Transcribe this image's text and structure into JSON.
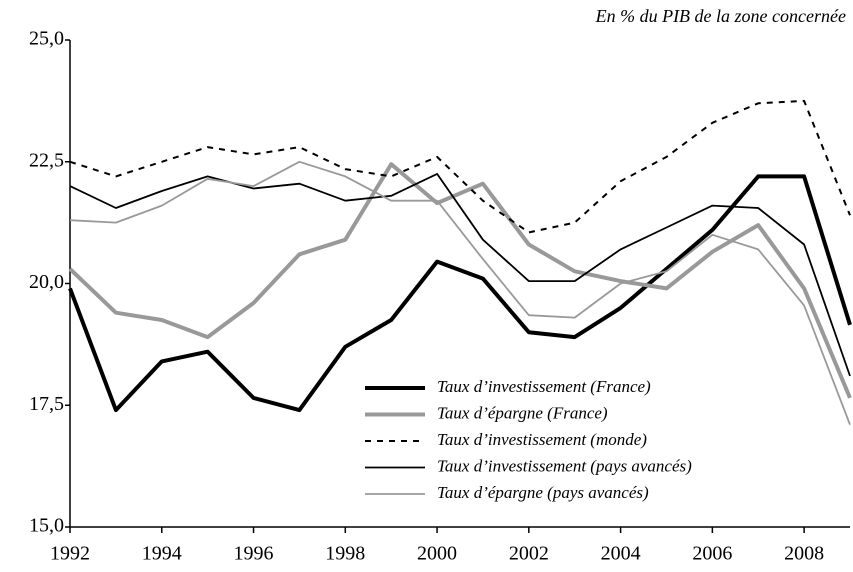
{
  "chart_data": {
    "type": "line",
    "annotation": "En % du PIB de la zone concernée",
    "x": [
      1992,
      1993,
      1994,
      1995,
      1996,
      1997,
      1998,
      1999,
      2000,
      2001,
      2002,
      2003,
      2004,
      2005,
      2006,
      2007,
      2008,
      2009
    ],
    "xlim": [
      1992,
      2009
    ],
    "xticks": [
      1992,
      1994,
      1996,
      1998,
      2000,
      2002,
      2004,
      2006,
      2008
    ],
    "ylim": [
      15,
      25
    ],
    "yticks": [
      {
        "value": 15,
        "label": "15,0"
      },
      {
        "value": 17.5,
        "label": "17,5"
      },
      {
        "value": 20,
        "label": "20,0"
      },
      {
        "value": 22.5,
        "label": "22,5"
      },
      {
        "value": 25,
        "label": "25,0"
      }
    ],
    "series": [
      {
        "name": "Taux d’investissement (France)",
        "color": "#000000",
        "width": 4,
        "dashed": false,
        "values": [
          19.9,
          17.4,
          18.4,
          18.6,
          17.65,
          17.4,
          18.7,
          19.25,
          20.45,
          20.1,
          19.0,
          18.9,
          19.5,
          20.3,
          21.1,
          22.2,
          22.2,
          19.15
        ]
      },
      {
        "name": "Taux d’épargne (France)",
        "color": "#999999",
        "width": 4,
        "dashed": false,
        "values": [
          20.3,
          19.4,
          19.25,
          18.9,
          19.6,
          20.6,
          20.9,
          22.45,
          21.65,
          22.05,
          20.8,
          20.25,
          20.05,
          19.9,
          20.65,
          21.2,
          19.9,
          17.65
        ]
      },
      {
        "name": "Taux d’investissement (monde)",
        "color": "#000000",
        "width": 2,
        "dashed": true,
        "values": [
          22.5,
          22.2,
          22.5,
          22.8,
          22.65,
          22.8,
          22.35,
          22.2,
          22.6,
          21.7,
          21.05,
          21.25,
          22.1,
          22.6,
          23.3,
          23.7,
          23.75,
          21.4
        ]
      },
      {
        "name": "Taux d’investissement (pays avancés)",
        "color": "#000000",
        "width": 1.8,
        "dashed": false,
        "values": [
          22.0,
          21.55,
          21.9,
          22.2,
          21.95,
          22.05,
          21.7,
          21.8,
          22.25,
          20.9,
          20.05,
          20.05,
          20.7,
          21.15,
          21.6,
          21.55,
          20.8,
          18.1
        ]
      },
      {
        "name": "Taux d’épargne (pays avancés)",
        "color": "#999999",
        "width": 1.8,
        "dashed": false,
        "values": [
          21.3,
          21.25,
          21.6,
          22.15,
          22.0,
          22.5,
          22.2,
          21.7,
          21.7,
          20.5,
          19.35,
          19.3,
          20.0,
          20.25,
          21.0,
          20.7,
          19.55,
          17.1
        ]
      }
    ]
  }
}
